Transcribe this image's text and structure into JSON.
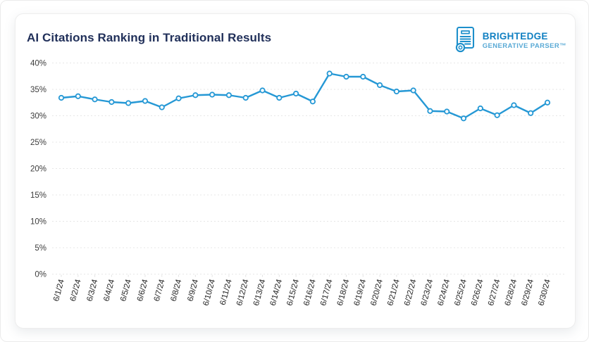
{
  "header": {
    "title": "AI Citations Ranking in Traditional Results",
    "title_color": "#21305a"
  },
  "logo": {
    "icon": "document-scanner-icon",
    "brand": "BRIGHTEDGE",
    "product": "GENERATIVE PARSER™",
    "brand_color": "#1180c2",
    "product_color": "#58a9d5"
  },
  "chart_data": {
    "type": "line",
    "title": "AI Citations Ranking in Traditional Results",
    "x": [
      "6/1/24",
      "6/2/24",
      "6/3/24",
      "6/4/24",
      "6/5/24",
      "6/6/24",
      "6/7/24",
      "6/8/24",
      "6/9/24",
      "6/10/24",
      "6/11/24",
      "6/12/24",
      "6/13/24",
      "6/14/24",
      "6/15/24",
      "6/16/24",
      "6/17/24",
      "6/18/24",
      "6/19/24",
      "6/20/24",
      "6/21/24",
      "6/22/24",
      "6/23/24",
      "6/24/24",
      "6/25/24",
      "6/26/24",
      "6/27/24",
      "6/28/24",
      "6/29/24",
      "6/30/24"
    ],
    "series": [
      {
        "name": "AI Citations Ranking in Traditional Results",
        "color": "#2598d5",
        "marker": "open-circle",
        "values": [
          33.4,
          33.7,
          33.1,
          32.6,
          32.4,
          32.8,
          31.6,
          33.3,
          33.9,
          34.0,
          33.9,
          33.4,
          34.8,
          33.4,
          34.2,
          32.7,
          38.0,
          37.4,
          37.4,
          35.8,
          34.6,
          34.8,
          30.9,
          30.8,
          29.5,
          31.4,
          30.1,
          32.0,
          30.5,
          32.5
        ]
      }
    ],
    "xlabel": "",
    "ylabel": "",
    "ylim": [
      0,
      40
    ],
    "yticks": {
      "values": [
        0,
        5,
        10,
        15,
        20,
        25,
        30,
        35,
        40
      ],
      "labels": [
        "0%",
        "5%",
        "10%",
        "15%",
        "20%",
        "25%",
        "30%",
        "35%",
        "40%"
      ]
    },
    "grid": {
      "horizontal": true,
      "vertical": false,
      "style": "dashed",
      "color": "#e7e7e7"
    },
    "legend": "none",
    "x_label_rotation": -75
  }
}
